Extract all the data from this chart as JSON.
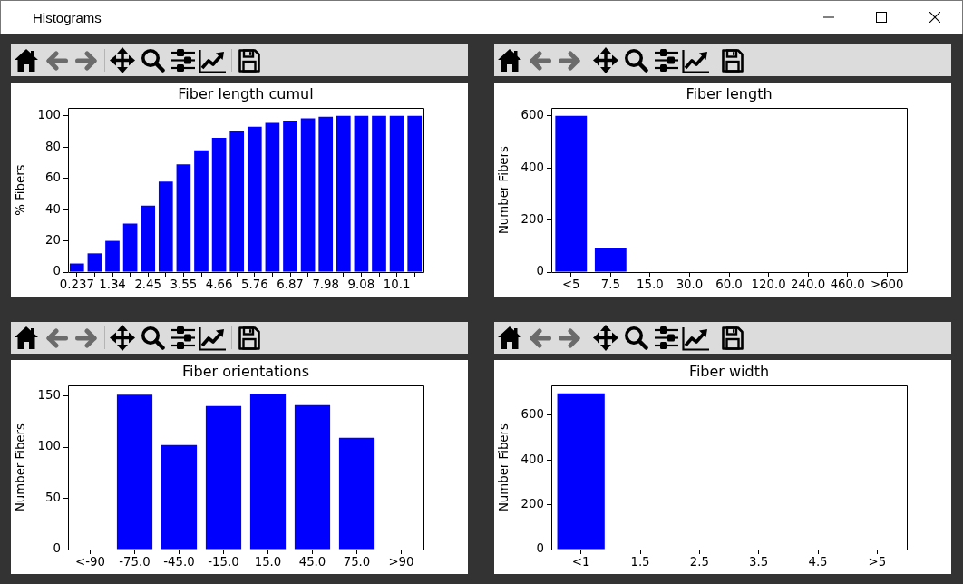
{
  "chart_data": [
    {
      "type": "other",
      "title": "Histograms"
    },
    {
      "type": "bar",
      "title": "Fiber length cumul",
      "ylabel": "% Fibers",
      "categories": [
        "0.237",
        null,
        "1.34",
        null,
        "2.45",
        null,
        "3.55",
        null,
        "4.66",
        null,
        "5.76",
        null,
        "6.87",
        null,
        "7.98",
        null,
        "9.08",
        null,
        "10.1",
        null
      ],
      "values": [
        5.5,
        12,
        20,
        31,
        42.5,
        58,
        69,
        78,
        86,
        90,
        93,
        95.5,
        97,
        98.5,
        99.5,
        100,
        100,
        100,
        100,
        100
      ],
      "color": "#0000ff",
      "ylim": [
        0,
        105
      ],
      "yticks": [
        0,
        20,
        40,
        60,
        80,
        100
      ],
      "grid": false
    },
    {
      "type": "bar",
      "title": "Fiber length",
      "ylabel": "Number Fibers",
      "categories": [
        "<5",
        "7.5",
        "15.0",
        "30.0",
        "60.0",
        "120.0",
        "240.0",
        "460.0",
        ">600"
      ],
      "values": [
        600,
        92,
        0,
        0,
        0,
        0,
        0,
        0,
        0
      ],
      "color": "#0000ff",
      "ylim": [
        0,
        630
      ],
      "yticks": [
        0,
        200,
        400,
        600
      ],
      "grid": false
    },
    {
      "type": "bar",
      "title": "Fiber orientations",
      "ylabel": "Number Fibers",
      "categories": [
        "<-90",
        "-75.0",
        "-45.0",
        "-15.0",
        "15.0",
        "45.0",
        "75.0",
        ">90"
      ],
      "values": [
        0,
        151,
        102,
        140,
        152,
        141,
        109,
        0
      ],
      "color": "#0000ff",
      "ylim": [
        0,
        160
      ],
      "yticks": [
        0,
        50,
        100,
        150
      ],
      "grid": false
    },
    {
      "type": "bar",
      "title": "Fiber width",
      "ylabel": "Number Fibers",
      "categories": [
        "<1",
        "1.5",
        "2.5",
        "3.5",
        "4.5",
        ">5"
      ],
      "values": [
        697,
        0,
        0,
        0,
        0,
        0
      ],
      "color": "#0000ff",
      "ylim": [
        0,
        732
      ],
      "yticks": [
        0,
        200,
        400,
        600
      ],
      "grid": false
    }
  ]
}
